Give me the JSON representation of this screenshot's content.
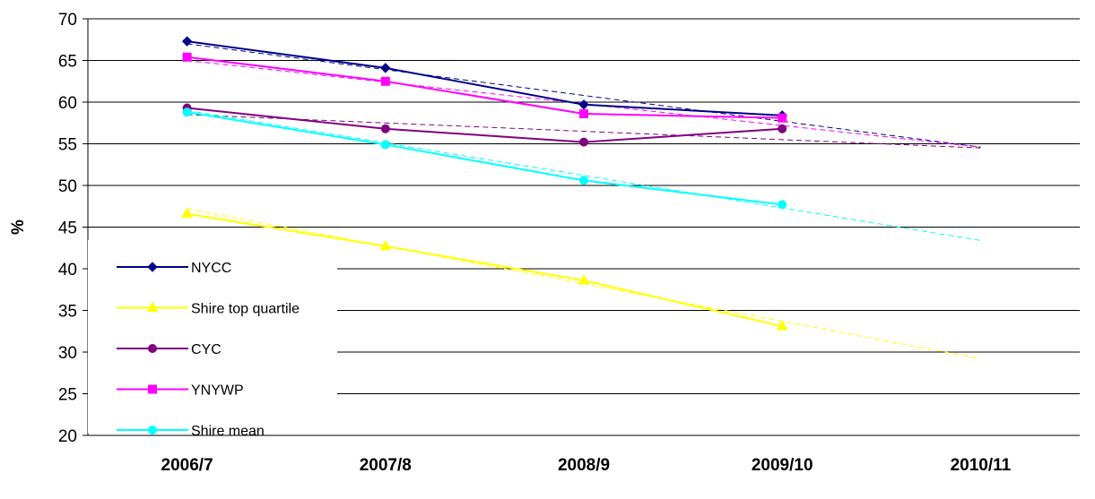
{
  "chart_data": {
    "type": "line",
    "title": "",
    "xlabel": "",
    "ylabel": "%",
    "ylim": [
      20,
      70
    ],
    "yticks": [
      20,
      25,
      30,
      35,
      40,
      45,
      50,
      55,
      60,
      65,
      70
    ],
    "categories": [
      "2006/7",
      "2007/8",
      "2008/9",
      "2009/10",
      "2010/11"
    ],
    "grid": "horizontal",
    "legend_position": "left",
    "series": [
      {
        "name": "NYCC",
        "color": "#00008B",
        "marker": "diamond",
        "values": [
          67.3,
          64.1,
          59.7,
          58.4,
          null
        ],
        "trend": [
          67.0,
          63.9,
          60.8,
          57.7,
          54.6
        ]
      },
      {
        "name": "Shire top quartile",
        "color": "#FFFF00",
        "marker": "triangle",
        "values": [
          46.6,
          42.7,
          38.6,
          33.1,
          null
        ],
        "trend": [
          47.2,
          42.7,
          38.2,
          33.7,
          29.2
        ]
      },
      {
        "name": "CYC",
        "color": "#800080",
        "marker": "circle",
        "values": [
          59.3,
          56.8,
          55.2,
          56.8,
          null
        ],
        "trend": [
          58.5,
          57.5,
          56.5,
          55.5,
          54.5
        ]
      },
      {
        "name": "YNYWP",
        "color": "#FF00FF",
        "marker": "square",
        "values": [
          65.4,
          62.5,
          58.6,
          58.1,
          null
        ],
        "trend": [
          65.0,
          62.4,
          59.8,
          57.2,
          54.6
        ]
      },
      {
        "name": "Shire mean",
        "color": "#00FFFF",
        "marker": "circle",
        "values": [
          58.8,
          54.9,
          50.6,
          47.7,
          null
        ],
        "trend": [
          59.0,
          55.1,
          51.2,
          47.3,
          43.4
        ]
      }
    ]
  }
}
